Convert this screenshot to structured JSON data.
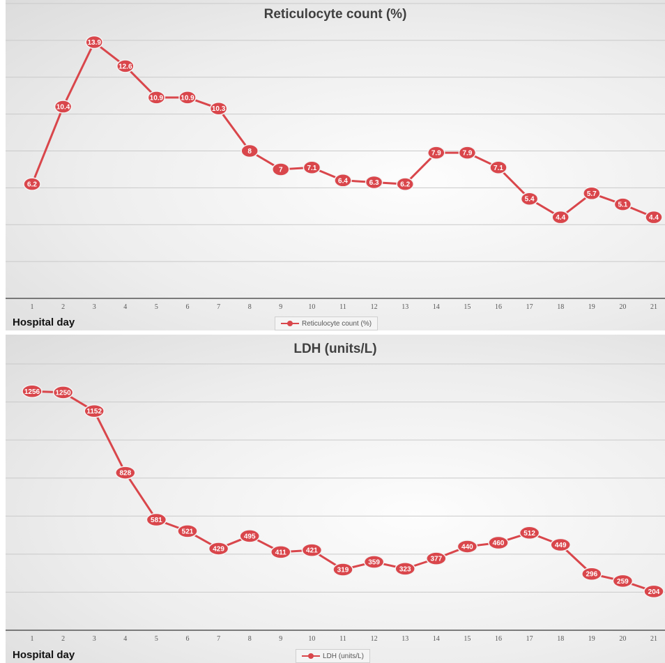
{
  "chart_data": [
    {
      "type": "line",
      "title": "Reticulocyte count (%)",
      "xlabel": "Hospital day",
      "ylabel": "",
      "categories": [
        "1",
        "2",
        "3",
        "4",
        "5",
        "6",
        "7",
        "8",
        "9",
        "10",
        "11",
        "12",
        "13",
        "14",
        "15",
        "16",
        "17",
        "18",
        "19",
        "20",
        "21"
      ],
      "series": [
        {
          "name": "Reticulocyte count (%)",
          "values": [
            6.2,
            10.4,
            13.9,
            12.6,
            10.9,
            10.9,
            10.3,
            8,
            7,
            7.1,
            6.4,
            6.3,
            6.2,
            7.9,
            7.9,
            7.1,
            5.4,
            4.4,
            5.7,
            5.1,
            4.4
          ]
        }
      ],
      "ylim": [
        0,
        16
      ],
      "grid": true,
      "legend_position": "bottom",
      "color": "#d9464b"
    },
    {
      "type": "line",
      "title": "LDH (units/L)",
      "xlabel": "Hospital day",
      "ylabel": "",
      "categories": [
        "1",
        "2",
        "3",
        "4",
        "5",
        "6",
        "7",
        "8",
        "9",
        "10",
        "11",
        "12",
        "13",
        "14",
        "15",
        "16",
        "17",
        "18",
        "19",
        "20",
        "21"
      ],
      "series": [
        {
          "name": "LDH (units/L)",
          "values": [
            1256,
            1250,
            1152,
            828,
            581,
            521,
            429,
            495,
            411,
            421,
            319,
            359,
            323,
            377,
            440,
            460,
            512,
            449,
            296,
            259,
            204
          ]
        }
      ],
      "ylim": [
        0,
        1400
      ],
      "grid": true,
      "legend_position": "bottom",
      "color": "#d9464b"
    }
  ]
}
